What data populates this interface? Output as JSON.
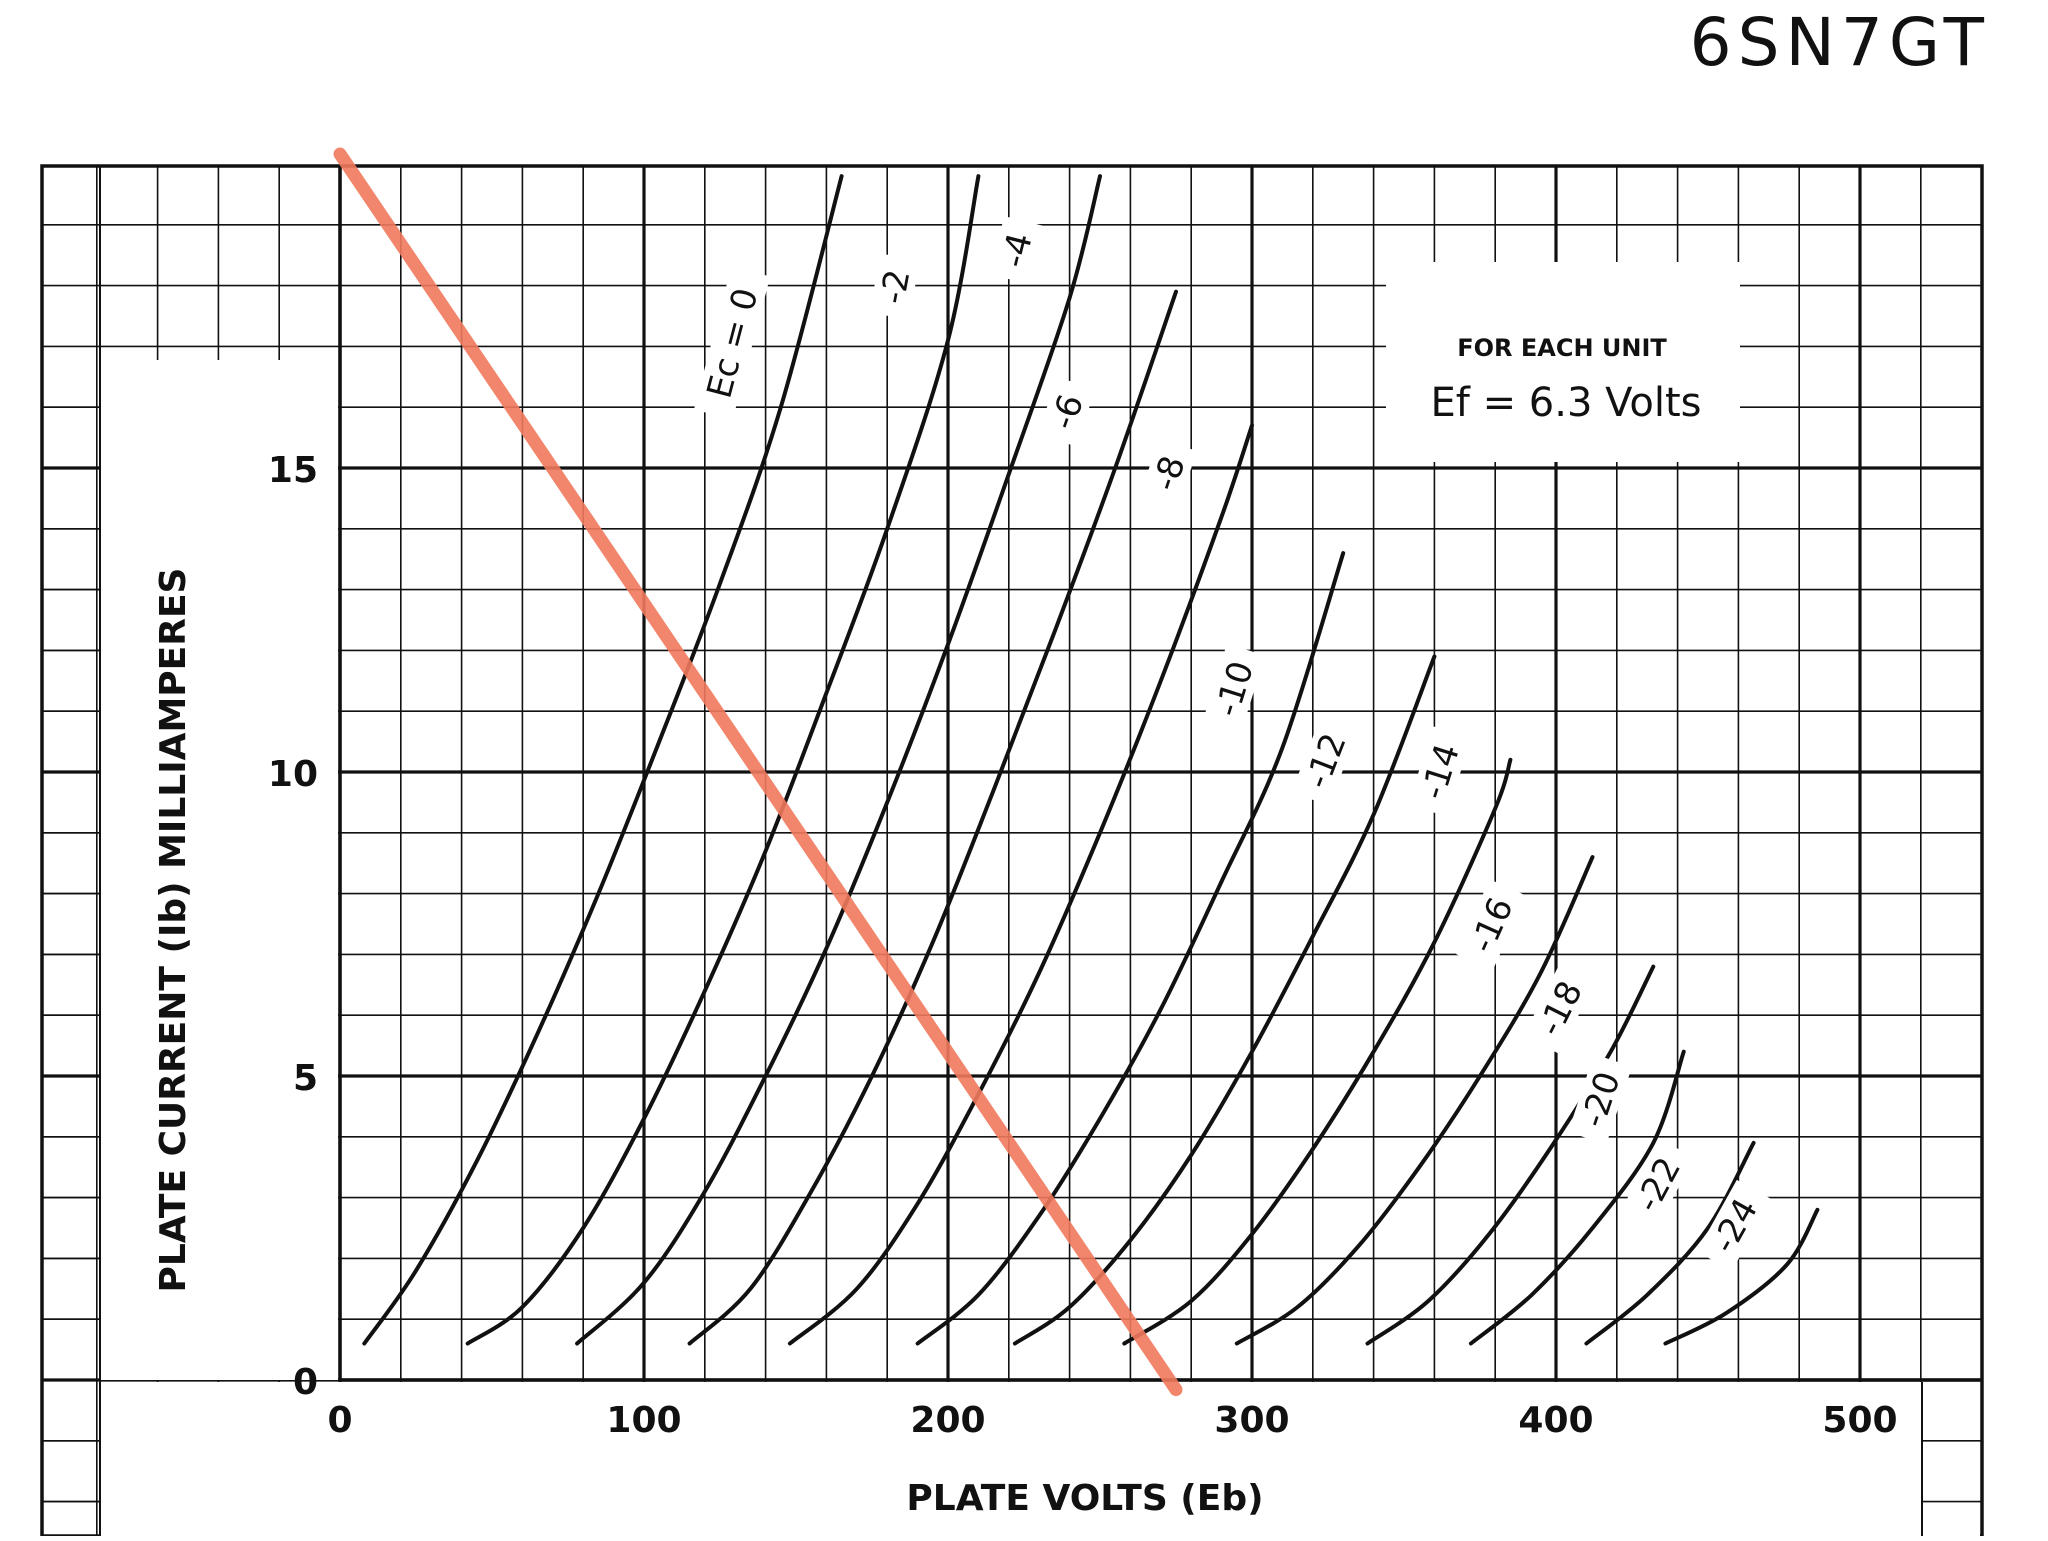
{
  "chart_data": {
    "type": "line",
    "title": "6SN7GT",
    "xlabel": "PLATE VOLTS (Eb)",
    "ylabel": "PLATE CURRENT (Ib) MILLIAMPERES",
    "xlim": [
      0,
      540
    ],
    "ylim": [
      0,
      20
    ],
    "xticks": [
      "0",
      "100",
      "200",
      "300",
      "400",
      "500"
    ],
    "yticks": [
      "0",
      "5",
      "10",
      "15"
    ],
    "grid": true,
    "annotation": {
      "line1": "FOR EACH UNIT",
      "line2": "Ef = 6.3 Volts"
    },
    "series_label_prefix": "Ec = ",
    "series": [
      {
        "name": "0",
        "x": [
          8,
          25,
          45,
          65,
          85,
          105,
          125,
          145,
          165
        ],
        "y": [
          0.6,
          1.8,
          3.6,
          5.7,
          8.0,
          10.5,
          13.1,
          16.0,
          19.8
        ]
      },
      {
        "name": "-2",
        "x": [
          42,
          60,
          80,
          100,
          120,
          140,
          160,
          180,
          200,
          210
        ],
        "y": [
          0.6,
          1.2,
          2.5,
          4.3,
          6.4,
          8.7,
          11.3,
          14.0,
          17.1,
          19.8
        ]
      },
      {
        "name": "-4",
        "x": [
          78,
          100,
          120,
          140,
          160,
          180,
          200,
          220,
          240,
          250
        ],
        "y": [
          0.6,
          1.6,
          3.1,
          5.0,
          7.1,
          9.5,
          12.1,
          14.9,
          17.8,
          19.8
        ]
      },
      {
        "name": "-6",
        "x": [
          115,
          135,
          155,
          175,
          195,
          215,
          235,
          255,
          275
        ],
        "y": [
          0.6,
          1.5,
          3.1,
          5.0,
          7.2,
          9.7,
          12.3,
          15.0,
          17.9
        ]
      },
      {
        "name": "-8",
        "x": [
          148,
          170,
          190,
          210,
          230,
          250,
          270,
          290,
          300
        ],
        "y": [
          0.6,
          1.5,
          2.9,
          4.7,
          6.7,
          9.0,
          11.5,
          14.2,
          15.7
        ]
      },
      {
        "name": "-10",
        "x": [
          190,
          210,
          230,
          250,
          270,
          290,
          310,
          330
        ],
        "y": [
          0.6,
          1.4,
          2.7,
          4.3,
          6.1,
          8.2,
          10.4,
          13.6
        ]
      },
      {
        "name": "-12",
        "x": [
          222,
          240,
          260,
          280,
          300,
          320,
          340,
          360
        ],
        "y": [
          0.6,
          1.2,
          2.3,
          3.7,
          5.4,
          7.3,
          9.3,
          11.9
        ]
      },
      {
        "name": "-14",
        "x": [
          258,
          280,
          300,
          320,
          340,
          360,
          380,
          385
        ],
        "y": [
          0.6,
          1.3,
          2.4,
          3.8,
          5.4,
          7.2,
          9.4,
          10.2
        ]
      },
      {
        "name": "-16",
        "x": [
          295,
          315,
          335,
          355,
          375,
          395,
          412
        ],
        "y": [
          0.6,
          1.2,
          2.2,
          3.5,
          5.0,
          6.7,
          8.6
        ]
      },
      {
        "name": "-18",
        "x": [
          338,
          358,
          378,
          398,
          418,
          432
        ],
        "y": [
          0.6,
          1.3,
          2.4,
          3.8,
          5.4,
          6.8
        ]
      },
      {
        "name": "-20",
        "x": [
          372,
          392,
          412,
          432,
          442
        ],
        "y": [
          0.6,
          1.4,
          2.5,
          3.9,
          5.4
        ]
      },
      {
        "name": "-22",
        "x": [
          410,
          430,
          450,
          465
        ],
        "y": [
          0.6,
          1.4,
          2.5,
          3.9
        ]
      },
      {
        "name": "-24",
        "x": [
          436,
          456,
          476,
          486
        ],
        "y": [
          0.6,
          1.1,
          1.9,
          2.8
        ]
      }
    ],
    "load_line": {
      "x": [
        0,
        275
      ],
      "y": [
        20,
        0.5
      ],
      "color": "#f07a5e"
    },
    "colors": {
      "curve": "#111111",
      "grid": "#111111",
      "load_line": "#f07a5e"
    }
  }
}
